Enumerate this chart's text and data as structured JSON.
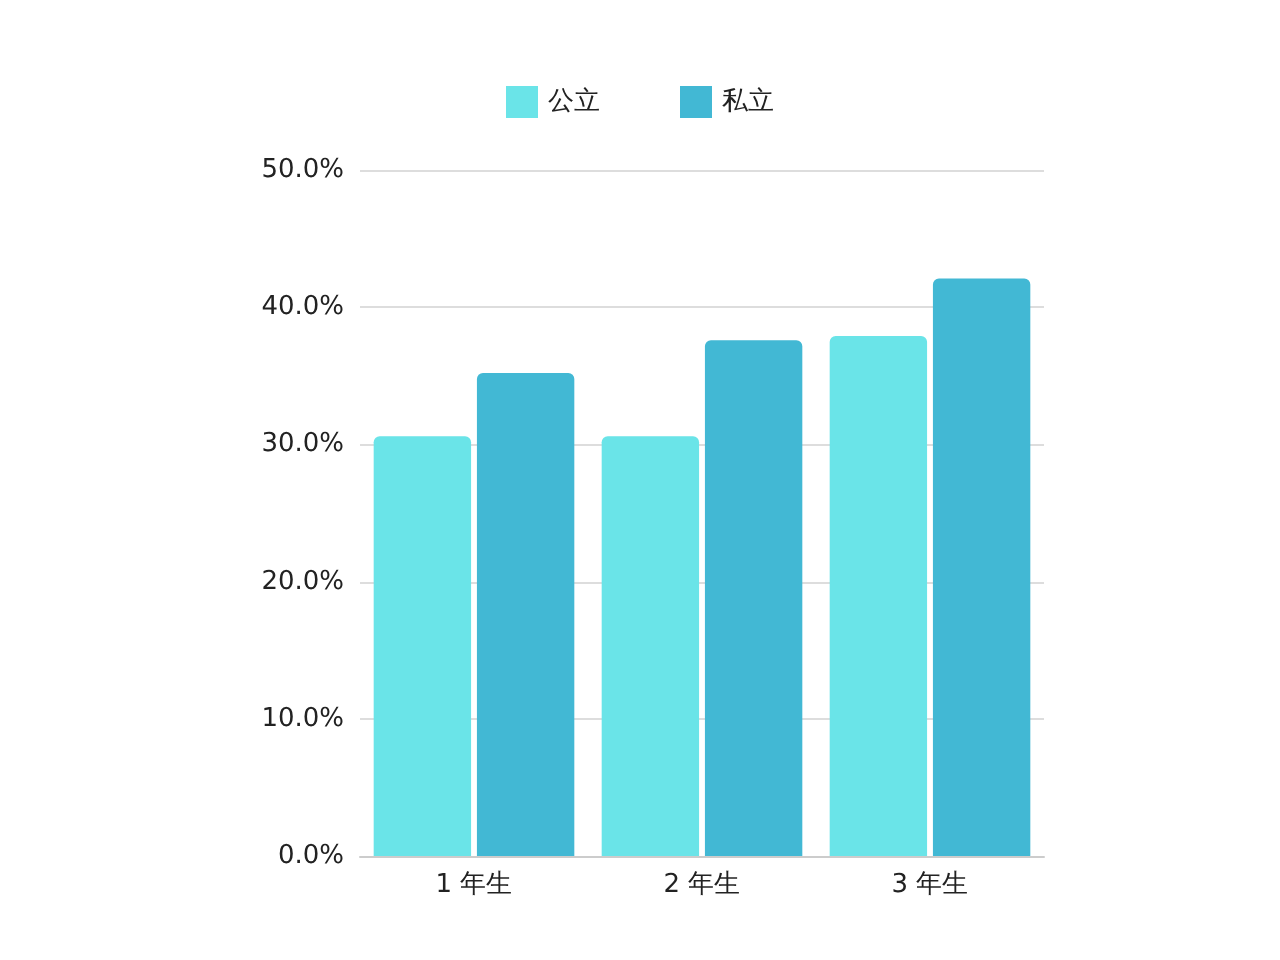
{
  "chart_data": {
    "type": "bar",
    "categories": [
      "1 年生",
      "2 年生",
      "3 年生"
    ],
    "series": [
      {
        "name": "公立",
        "color": "#6ae4e8",
        "values": [
          30.6,
          30.6,
          37.9
        ]
      },
      {
        "name": "私立",
        "color": "#42b8d4",
        "values": [
          35.2,
          37.6,
          42.1
        ]
      }
    ],
    "ylim": [
      0,
      50
    ],
    "yticks": [
      {
        "value": 0,
        "label": "0.0%"
      },
      {
        "value": 10,
        "label": "10.0%"
      },
      {
        "value": 20,
        "label": "20.0%"
      },
      {
        "value": 30,
        "label": "30.0%"
      },
      {
        "value": 40,
        "label": "40.0%"
      },
      {
        "value": 50,
        "label": "50.0%"
      }
    ],
    "grid": "y",
    "legend": "top"
  }
}
